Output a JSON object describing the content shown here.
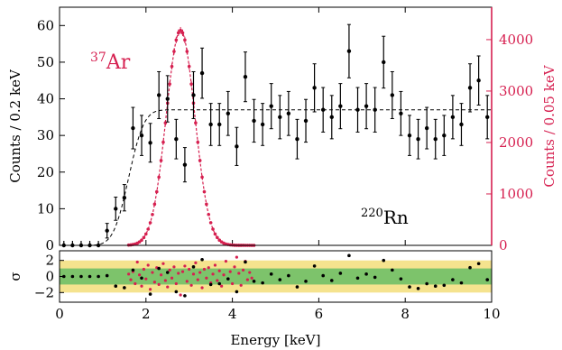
{
  "chart_data": {
    "type": "scatter",
    "main": {
      "xlim": [
        0,
        10
      ],
      "ylim_left": [
        0,
        65
      ],
      "ylim_right": [
        0,
        4630
      ],
      "xticks": [
        0,
        2,
        4,
        6,
        8,
        10
      ],
      "yticks_left": [
        0,
        10,
        20,
        30,
        40,
        50,
        60
      ],
      "yticks_right": [
        0,
        1000,
        2000,
        3000,
        4000
      ],
      "ylabel_left": "Counts / 0.2 keV",
      "ylabel_right": "Counts / 0.05 keV",
      "right_axis_color": "#d62050",
      "series": [
        {
          "axis": "left",
          "color": "#000000",
          "x": [
            0.1,
            0.3,
            0.5,
            0.7,
            0.9,
            1.1,
            1.3,
            1.5,
            1.7,
            1.9,
            2.1,
            2.3,
            2.5,
            2.7,
            2.9,
            3.1,
            3.3,
            3.5,
            3.7,
            3.9,
            4.1,
            4.3,
            4.5,
            4.7,
            4.9,
            5.1,
            5.3,
            5.5,
            5.7,
            5.9,
            6.1,
            6.3,
            6.5,
            6.7,
            6.9,
            7.1,
            7.3,
            7.5,
            7.7,
            7.9,
            8.1,
            8.3,
            8.5,
            8.7,
            8.9,
            9.1,
            9.3,
            9.5,
            9.7,
            9.9
          ],
          "y": [
            0,
            0,
            0,
            0,
            0,
            4,
            10,
            13,
            32,
            30,
            28,
            41,
            40,
            29,
            22,
            41,
            47,
            33,
            33,
            36,
            27,
            46,
            34,
            33,
            38,
            35,
            36,
            29,
            34,
            43,
            37,
            35,
            38,
            53,
            37,
            38,
            37,
            50,
            41,
            36,
            30,
            29,
            32,
            29,
            30,
            35,
            33,
            43,
            45,
            35
          ]
        },
        {
          "axis": "right",
          "color": "#d62050",
          "center": 2.8,
          "sigma": 0.33,
          "peak": 4180,
          "x_range": [
            1.6,
            4.5
          ],
          "x_step": 0.05
        }
      ],
      "fit_curve": {
        "axis": "left",
        "style": "dashed",
        "plateau": 37,
        "threshold": 1.6,
        "width": 0.28
      },
      "annotations": {
        "ar": {
          "sup": "37",
          "base": "Ar",
          "color": "#d62050"
        },
        "rn": {
          "sup": "220",
          "base": "Rn",
          "color": "#000000"
        }
      }
    },
    "residual": {
      "xlabel": "Energy [keV]",
      "ylabel": "σ",
      "xlim": [
        0,
        10
      ],
      "ylim": [
        -3.2,
        3.2
      ],
      "yticks": [
        -2,
        0,
        2
      ],
      "band_1sigma_color": "#7dc36b",
      "band_2sigma_color": "#f5e38e",
      "black_points": [
        [
          0.1,
          0
        ],
        [
          0.3,
          0
        ],
        [
          0.5,
          0
        ],
        [
          0.7,
          0
        ],
        [
          0.9,
          0
        ],
        [
          1.1,
          0.1
        ],
        [
          1.3,
          -1.2
        ],
        [
          1.5,
          -1.4
        ],
        [
          1.7,
          0.8
        ],
        [
          1.9,
          -0.2
        ],
        [
          2.1,
          -2.2
        ],
        [
          2.3,
          1.0
        ],
        [
          2.5,
          0.5
        ],
        [
          2.7,
          -1.9
        ],
        [
          2.9,
          -2.4
        ],
        [
          3.1,
          1.2
        ],
        [
          3.3,
          2.1
        ],
        [
          3.5,
          -1.0
        ],
        [
          3.7,
          -0.9
        ],
        [
          3.9,
          -0.3
        ],
        [
          4.1,
          -1.9
        ],
        [
          4.3,
          1.8
        ],
        [
          4.5,
          -0.6
        ],
        [
          4.7,
          -0.8
        ],
        [
          4.9,
          0.3
        ],
        [
          5.1,
          -0.4
        ],
        [
          5.3,
          0.1
        ],
        [
          5.5,
          -1.3
        ],
        [
          5.7,
          -0.6
        ],
        [
          5.9,
          1.3
        ],
        [
          6.1,
          0.1
        ],
        [
          6.3,
          -0.5
        ],
        [
          6.5,
          0.4
        ],
        [
          6.7,
          2.6
        ],
        [
          6.9,
          -0.2
        ],
        [
          7.1,
          0.3
        ],
        [
          7.3,
          -0.1
        ],
        [
          7.5,
          2.0
        ],
        [
          7.7,
          0.8
        ],
        [
          7.9,
          -0.3
        ],
        [
          8.1,
          -1.3
        ],
        [
          8.3,
          -1.5
        ],
        [
          8.5,
          -0.9
        ],
        [
          8.7,
          -1.2
        ],
        [
          8.9,
          -1.1
        ],
        [
          9.1,
          -0.4
        ],
        [
          9.3,
          -0.8
        ],
        [
          9.5,
          1.1
        ],
        [
          9.7,
          1.6
        ],
        [
          9.9,
          -0.4
        ]
      ],
      "red_points": [
        [
          1.6,
          0.3
        ],
        [
          1.65,
          -0.4
        ],
        [
          1.7,
          0.6
        ],
        [
          1.75,
          -0.9
        ],
        [
          1.8,
          1.8
        ],
        [
          1.85,
          0.2
        ],
        [
          1.9,
          -1.2
        ],
        [
          1.95,
          0.9
        ],
        [
          2.0,
          -0.3
        ],
        [
          2.05,
          1.4
        ],
        [
          2.1,
          -1.6
        ],
        [
          2.15,
          0.5
        ],
        [
          2.2,
          -0.7
        ],
        [
          2.25,
          1.1
        ],
        [
          2.3,
          -1.0
        ],
        [
          2.35,
          0.2
        ],
        [
          2.4,
          1.6
        ],
        [
          2.45,
          -0.5
        ],
        [
          2.5,
          -1.3
        ],
        [
          2.55,
          0.8
        ],
        [
          2.6,
          -0.2
        ],
        [
          2.65,
          1.2
        ],
        [
          2.7,
          -0.9
        ],
        [
          2.75,
          0.4
        ],
        [
          2.8,
          -2.3
        ],
        [
          2.85,
          0.6
        ],
        [
          2.9,
          1.3
        ],
        [
          2.95,
          -0.6
        ],
        [
          3.0,
          0.9
        ],
        [
          3.05,
          -1.1
        ],
        [
          3.1,
          0.3
        ],
        [
          3.15,
          1.7
        ],
        [
          3.2,
          -0.4
        ],
        [
          3.25,
          0.5
        ],
        [
          3.3,
          -1.4
        ],
        [
          3.35,
          0.9
        ],
        [
          3.4,
          -0.2
        ],
        [
          3.45,
          1.1
        ],
        [
          3.5,
          -0.8
        ],
        [
          3.55,
          0.3
        ],
        [
          3.6,
          1.4
        ],
        [
          3.65,
          -0.5
        ],
        [
          3.7,
          0.7
        ],
        [
          3.75,
          -1.2
        ],
        [
          3.8,
          0.2
        ],
        [
          3.85,
          1.9
        ],
        [
          3.9,
          -0.3
        ],
        [
          3.95,
          0.6
        ],
        [
          4.0,
          -0.9
        ],
        [
          4.05,
          1.2
        ],
        [
          4.1,
          2.4
        ],
        [
          4.15,
          0.4
        ],
        [
          4.2,
          -1.1
        ],
        [
          4.25,
          0.8
        ],
        [
          4.3,
          1.9
        ],
        [
          4.35,
          -0.4
        ],
        [
          4.4,
          0.5
        ],
        [
          4.45,
          -0.2
        ]
      ]
    }
  }
}
